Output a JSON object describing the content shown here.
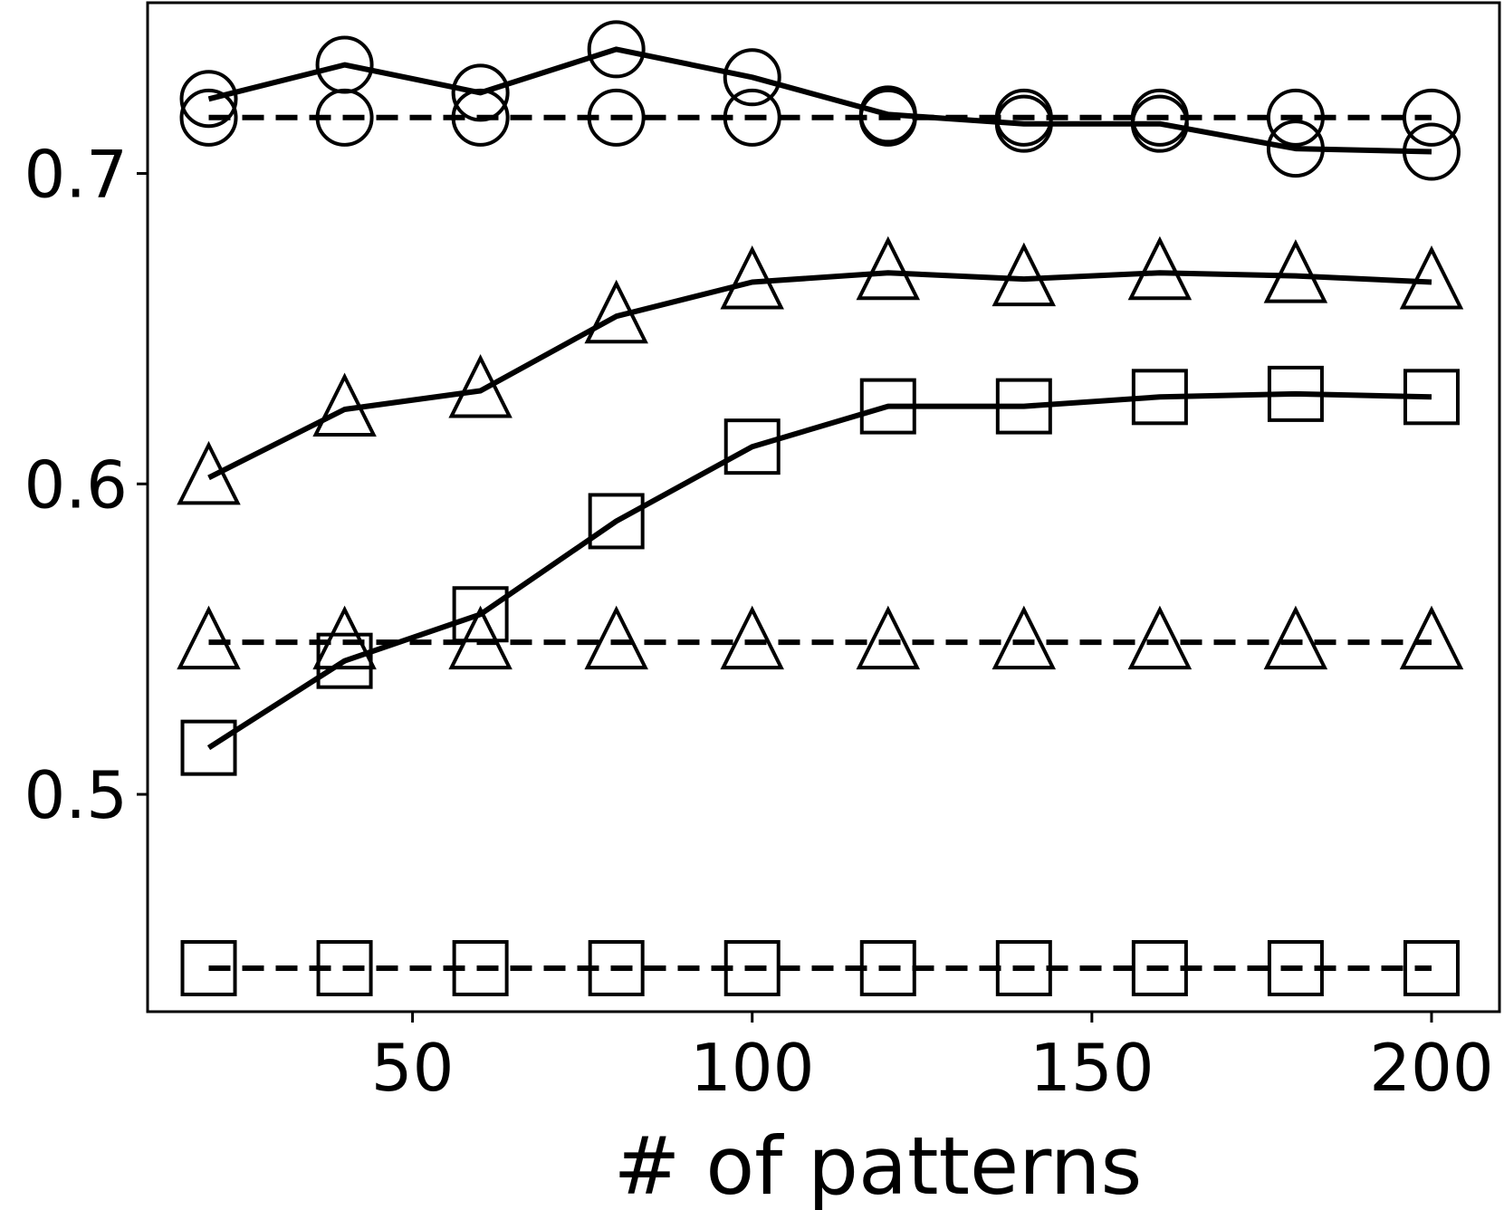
{
  "chart_data": {
    "type": "line",
    "title": "",
    "xlabel": "# of patterns",
    "ylabel": "",
    "xlim": [
      11,
      210
    ],
    "ylim": [
      0.43,
      0.755
    ],
    "x_ticks": [
      50,
      100,
      150,
      200
    ],
    "x_tick_labels": [
      "50",
      "100",
      "150",
      "200"
    ],
    "y_ticks": [
      0.5,
      0.6,
      0.7
    ],
    "y_tick_labels": [
      "0.5",
      "0.6",
      "0.7"
    ],
    "grid": false,
    "legend": "none",
    "x": [
      20,
      40,
      60,
      80,
      100,
      120,
      140,
      160,
      180,
      200
    ],
    "series": [
      {
        "marker": "circle",
        "style": "solid",
        "values": [
          0.724,
          0.735,
          0.726,
          0.74,
          0.731,
          0.719,
          0.716,
          0.716,
          0.708,
          0.707
        ]
      },
      {
        "marker": "circle",
        "style": "dashed",
        "values": [
          0.718,
          0.718,
          0.718,
          0.718,
          0.718,
          0.718,
          0.718,
          0.718,
          0.718,
          0.718
        ]
      },
      {
        "marker": "triangle",
        "style": "solid",
        "values": [
          0.602,
          0.624,
          0.63,
          0.654,
          0.665,
          0.668,
          0.666,
          0.668,
          0.667,
          0.665
        ]
      },
      {
        "marker": "triangle",
        "style": "dashed",
        "values": [
          0.549,
          0.549,
          0.549,
          0.549,
          0.549,
          0.549,
          0.549,
          0.549,
          0.549,
          0.549
        ]
      },
      {
        "marker": "square",
        "style": "solid",
        "values": [
          0.515,
          0.543,
          0.558,
          0.588,
          0.612,
          0.625,
          0.625,
          0.628,
          0.629,
          0.628
        ]
      },
      {
        "marker": "square",
        "style": "dashed",
        "values": [
          0.444,
          0.444,
          0.444,
          0.444,
          0.444,
          0.444,
          0.444,
          0.444,
          0.444,
          0.444
        ]
      }
    ],
    "colors": {
      "line": "#000000",
      "marker_fill": "#ffffff",
      "background": "#ffffff"
    }
  }
}
